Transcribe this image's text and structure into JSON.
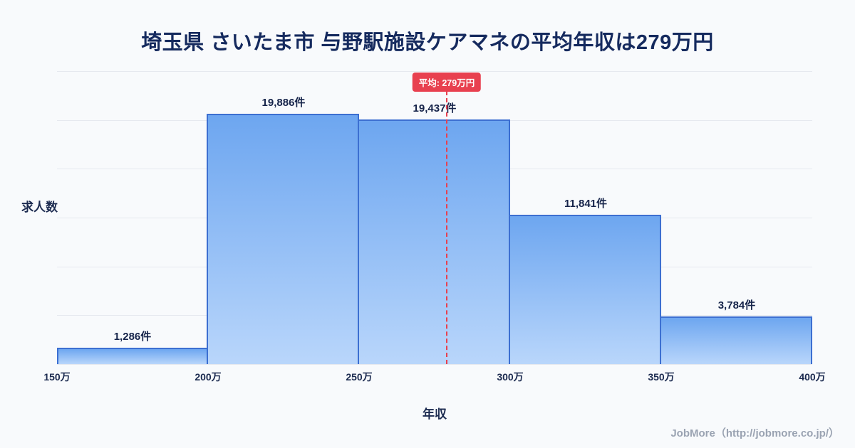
{
  "header": {
    "title": "埼玉県 さいたま市 与野駅施設ケアマネの平均年収は279万円"
  },
  "footer": {
    "credit": "JobMore（http://jobmore.co.jp/）"
  },
  "chart_data": {
    "type": "bar",
    "title": "埼玉県 さいたま市 与野駅施設ケアマネの平均年収は279万円",
    "xlabel": "年収",
    "ylabel": "求人数",
    "x_ticks": [
      "150万",
      "200万",
      "250万",
      "300万",
      "350万",
      "400万"
    ],
    "x_range": [
      150,
      400
    ],
    "x_unit": "万円",
    "ylim": [
      0,
      23280
    ],
    "grid": {
      "style": "horizontal",
      "intervals": 6
    },
    "legend": "none",
    "bins": [
      {
        "range": "150万-200万",
        "value": 1286,
        "label": "1,286件"
      },
      {
        "range": "200万-250万",
        "value": 19886,
        "label": "19,886件"
      },
      {
        "range": "250万-300万",
        "value": 19437,
        "label": "19,437件"
      },
      {
        "range": "300万-350万",
        "value": 11841,
        "label": "11,841件"
      },
      {
        "range": "350万-400万",
        "value": 3784,
        "label": "3,784件"
      }
    ],
    "average_line": {
      "x": 279,
      "label": "平均: 279万円",
      "style": "dashed"
    },
    "colors": {
      "background": "#f8fafc",
      "title_text": "#152a5e",
      "axis_text": "#1c2b50",
      "gridline": "#e6e9ef",
      "bar_fill_top": "#6da6f0",
      "bar_fill_bottom": "#b9d6fb",
      "bar_border": "#3c6fd1",
      "average_line": "#e8404f",
      "badge_text": "#ffffff",
      "footer_text": "#9aa3b2"
    }
  }
}
